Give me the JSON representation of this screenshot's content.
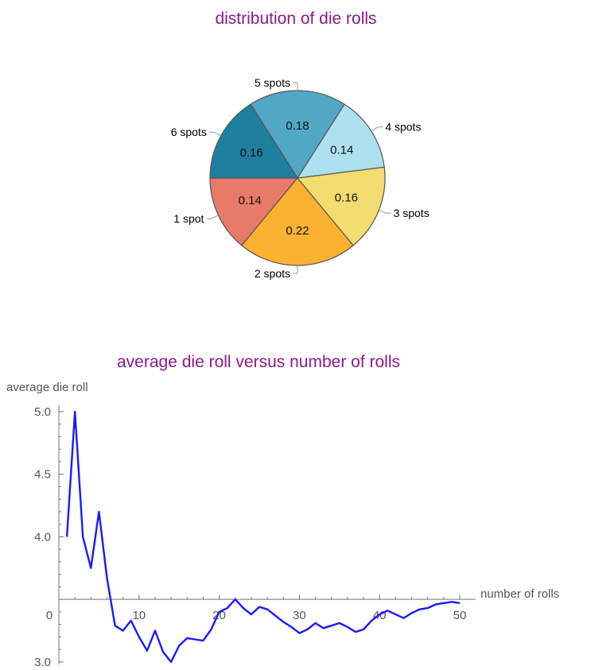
{
  "colors": {
    "title": "#8b1a8b",
    "axis": "#777777",
    "line": "#1a1aff",
    "slice_border": "#555555",
    "label_connector": "#999999"
  },
  "chart_data": [
    {
      "type": "pie",
      "title": "distribution of die rolls",
      "slices": [
        {
          "label": "1 spot",
          "value": 0.14,
          "color": "#e87a6a"
        },
        {
          "label": "2 spots",
          "value": 0.22,
          "color": "#fbb232"
        },
        {
          "label": "3 spots",
          "value": 0.16,
          "color": "#f3dc70"
        },
        {
          "label": "4 spots",
          "value": 0.14,
          "color": "#aee1ef"
        },
        {
          "label": "5 spots",
          "value": 0.18,
          "color": "#52a8c4"
        },
        {
          "label": "6 spots",
          "value": 0.16,
          "color": "#1f7f9e"
        }
      ]
    },
    {
      "type": "line",
      "title": "average die roll versus number of rolls",
      "xlabel": "number of rolls",
      "ylabel": "average die roll",
      "xlim": [
        0,
        50
      ],
      "ylim": [
        2.98,
        5.05
      ],
      "x_origin_y": 3.5,
      "x_ticks": [
        0,
        10,
        20,
        30,
        40,
        50
      ],
      "x_tick_labels": [
        "0",
        "10",
        "20",
        "30",
        "40",
        "50"
      ],
      "y_ticks": [
        3.0,
        4.0,
        4.5,
        5.0
      ],
      "y_tick_labels": [
        "3.0",
        "4.0",
        "4.5",
        "5.0"
      ],
      "series": [
        {
          "x": [
            1,
            2,
            3,
            4,
            5,
            6,
            7,
            8,
            9,
            10,
            11,
            12,
            13,
            14,
            15,
            16,
            17,
            18,
            19,
            20,
            21,
            22,
            23,
            24,
            25,
            26,
            27,
            28,
            29,
            30,
            31,
            32,
            33,
            34,
            35,
            36,
            37,
            38,
            39,
            40,
            41,
            42,
            43,
            44,
            45,
            46,
            47,
            48,
            49,
            50
          ],
          "values": [
            4.0,
            5.0,
            4.0,
            3.75,
            4.2,
            3.67,
            3.29,
            3.25,
            3.33,
            3.2,
            3.09,
            3.25,
            3.08,
            3.0,
            3.13,
            3.19,
            3.18,
            3.17,
            3.26,
            3.4,
            3.43,
            3.5,
            3.43,
            3.38,
            3.44,
            3.42,
            3.37,
            3.32,
            3.28,
            3.23,
            3.26,
            3.31,
            3.27,
            3.29,
            3.31,
            3.28,
            3.24,
            3.26,
            3.33,
            3.38,
            3.41,
            3.38,
            3.35,
            3.39,
            3.42,
            3.43,
            3.46,
            3.47,
            3.48,
            3.47
          ]
        }
      ]
    }
  ]
}
